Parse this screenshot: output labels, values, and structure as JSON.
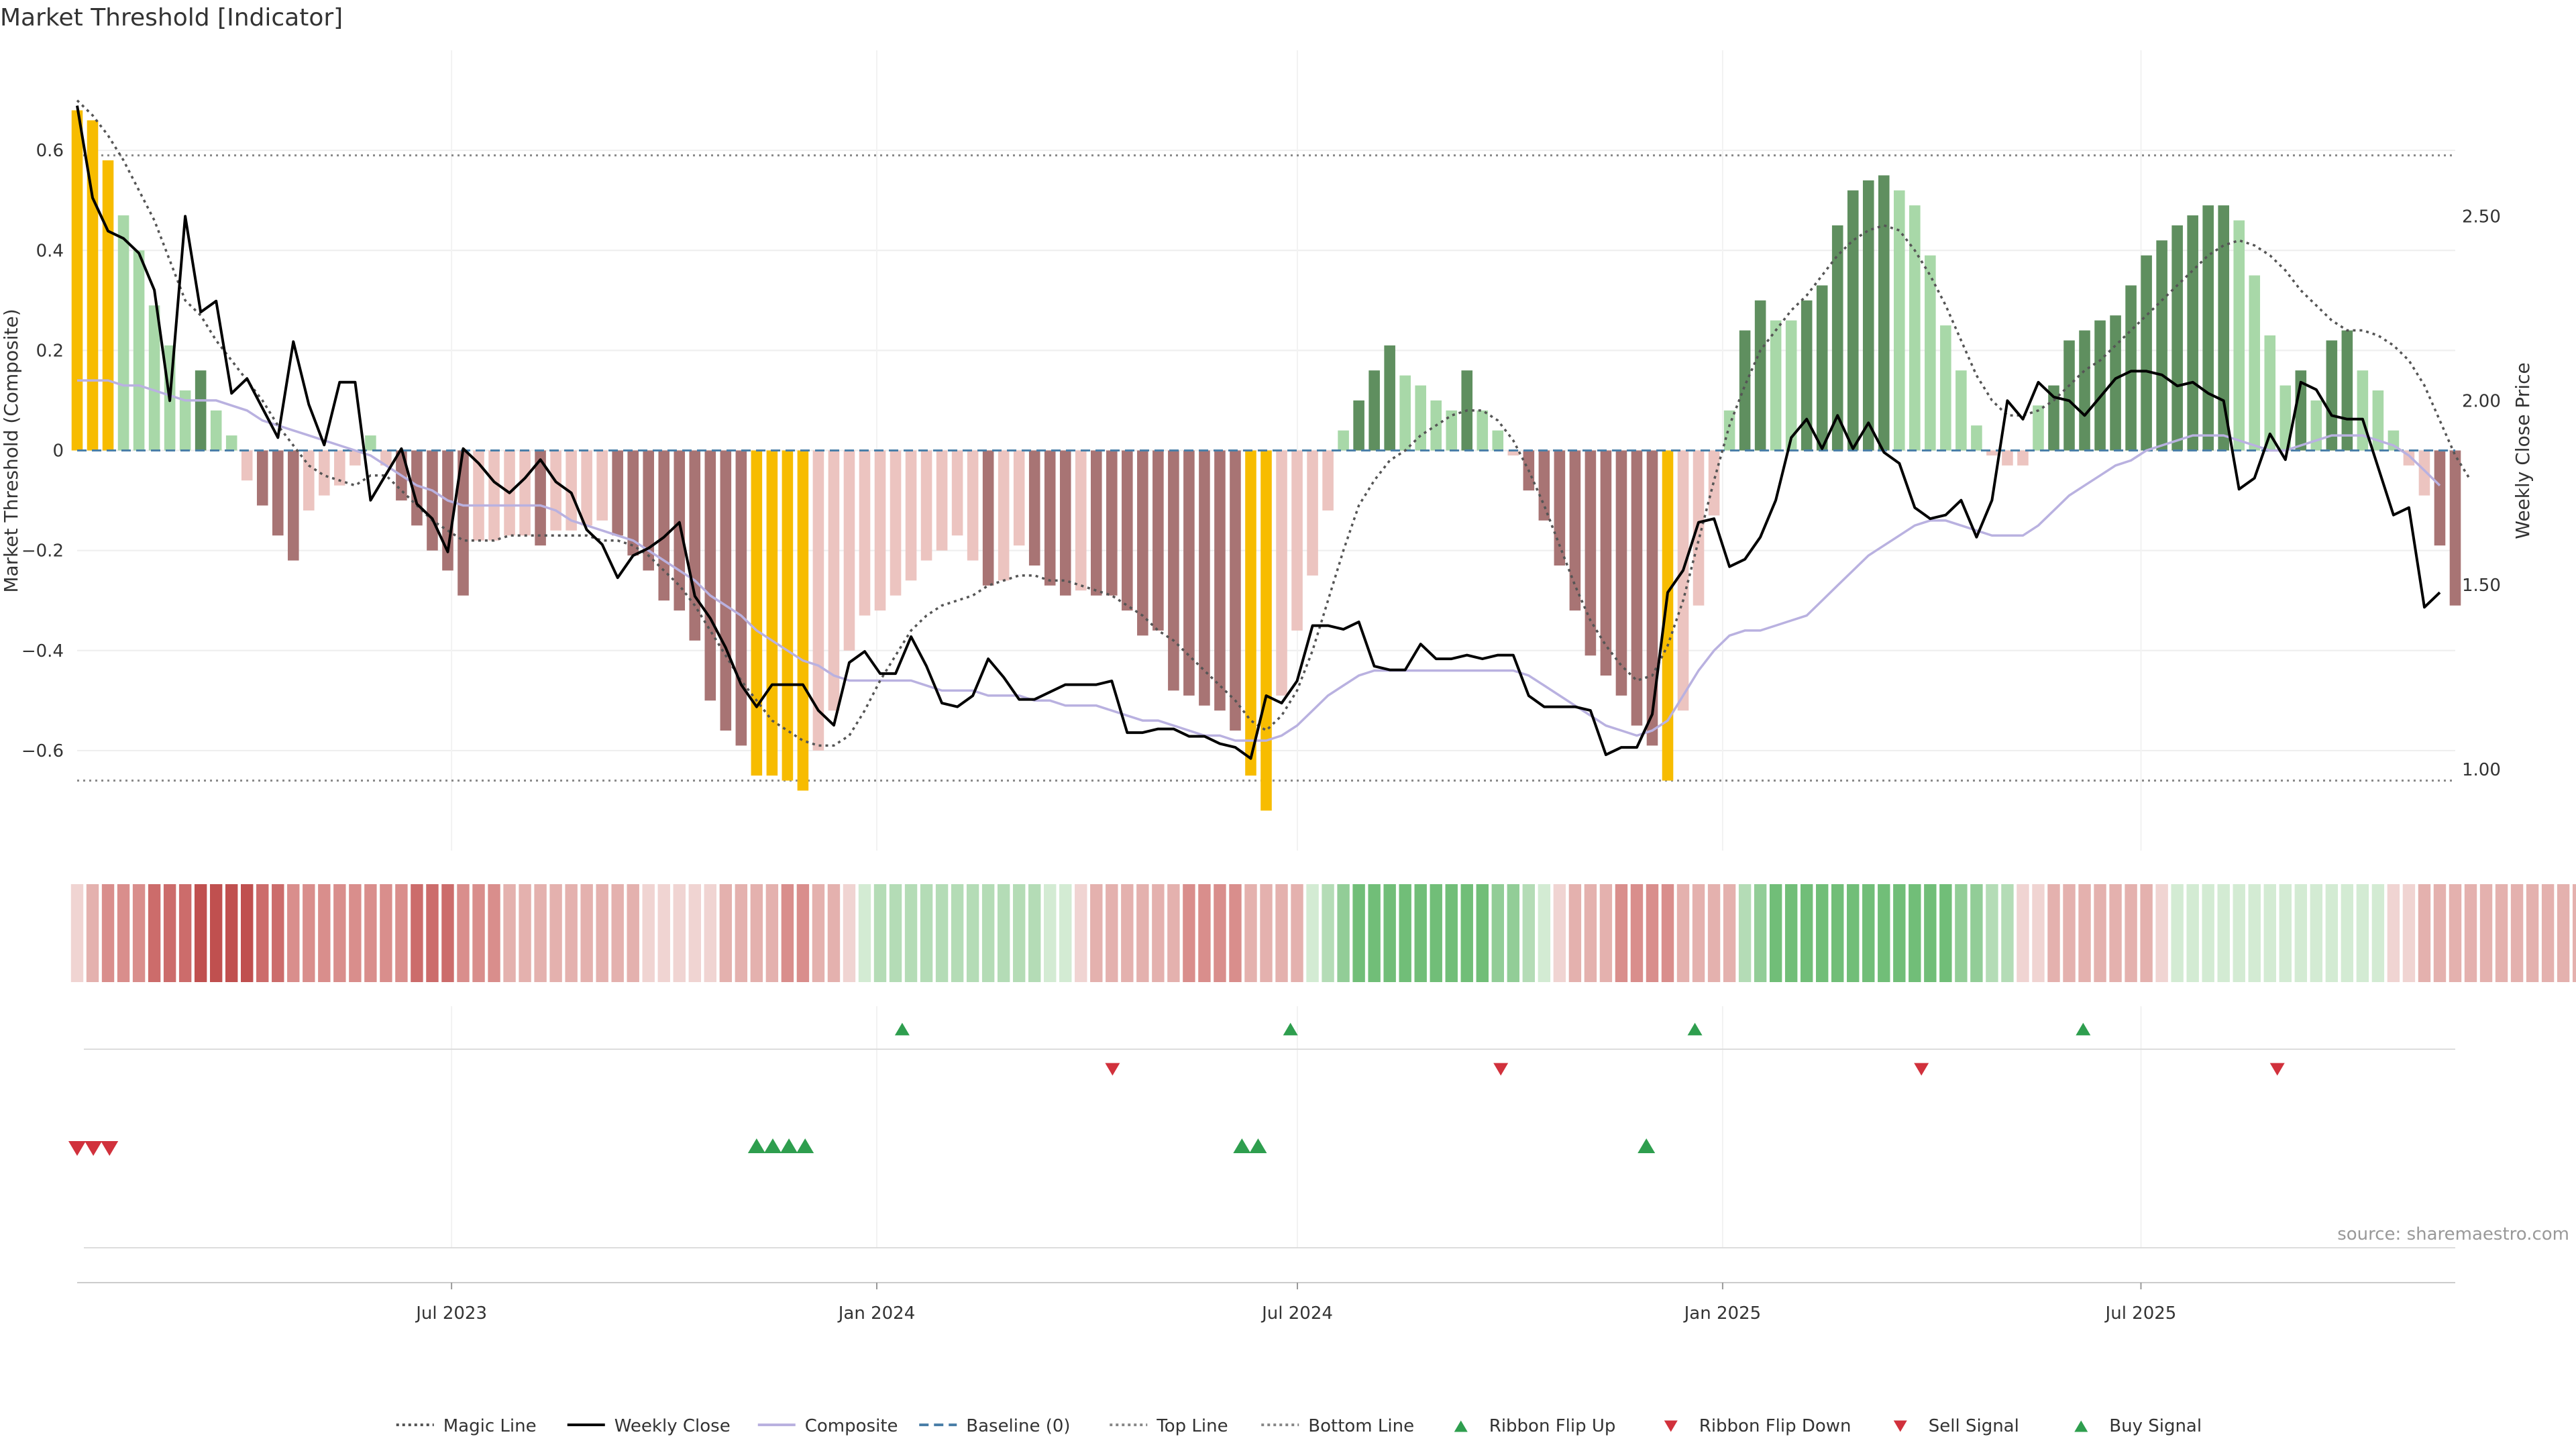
{
  "chart_data": {
    "type": "bar",
    "title": "Market Threshold [Indicator]",
    "ylabel": "Market Threshold (Composite)",
    "y2label": "Weekly Close Price",
    "ylim": [
      -0.8,
      0.8
    ],
    "y2lim": [
      0.78,
      2.95
    ],
    "yticks": [
      -0.6,
      -0.4,
      -0.2,
      0,
      0.2,
      0.4,
      0.6
    ],
    "ytick_labels": [
      "−0.6",
      "−0.4",
      "−0.2",
      "0",
      "0.2",
      "0.4",
      "0.6"
    ],
    "y2ticks": [
      1.0,
      1.5,
      2.0,
      2.5
    ],
    "y2tick_labels": [
      "1.00",
      "1.50",
      "2.00",
      "2.50"
    ],
    "x_start": "2023-01-20",
    "x_end": "2025-11-14",
    "xticks": [
      "2023-07-01",
      "2024-01-01",
      "2024-07-01",
      "2025-01-01",
      "2025-07-01"
    ],
    "xtick_labels": [
      "Jul 2023",
      "Jan 2024",
      "Jul 2024",
      "Jan 2025",
      "Jul 2025"
    ],
    "top_line": 0.59,
    "bottom_line": -0.66,
    "source": "source: sharemaestro.com",
    "legend": [
      {
        "label": "Magic Line",
        "kind": "dotted",
        "color": "#555555"
      },
      {
        "label": "Weekly Close",
        "kind": "solid",
        "color": "#000000"
      },
      {
        "label": "Composite",
        "kind": "solid",
        "color": "#b9b1e0"
      },
      {
        "label": "Baseline (0)",
        "kind": "dashed",
        "color": "#4a7fa8"
      },
      {
        "label": "Top Line",
        "kind": "dotted",
        "color": "#888888"
      },
      {
        "label": "Bottom Line",
        "kind": "dotted",
        "color": "#888888"
      },
      {
        "label": "Ribbon Flip Up",
        "kind": "tri-up",
        "color": "#2e9e4e"
      },
      {
        "label": "Ribbon Flip Down",
        "kind": "tri-down",
        "color": "#d1313c"
      },
      {
        "label": "Sell Signal",
        "kind": "tri-down",
        "color": "#d1313c"
      },
      {
        "label": "Buy Signal",
        "kind": "tri-up",
        "color": "#2e9e4e"
      }
    ],
    "legend_position": "bottom",
    "colors": {
      "strong_positive": "#5f8f5f",
      "weak_positive": "#a8d8a8",
      "strong_negative": "#a87474",
      "weak_negative": "#ecc4c0",
      "extreme": "#f7bc00",
      "weekly_close": "#000000",
      "magic_line": "#555555",
      "composite": "#b9b1e0",
      "baseline": "#4a7fa8",
      "threshold_lines": "#888888",
      "ribbon_green": "#3fb060",
      "ribbon_red": "#c8585a",
      "signal_up": "#2e9e4e",
      "signal_down": "#d1313c"
    },
    "bars": [
      0.68,
      0.66,
      0.58,
      0.47,
      0.4,
      0.29,
      0.21,
      0.12,
      0.16,
      0.08,
      0.03,
      -0.06,
      -0.11,
      -0.17,
      -0.22,
      -0.12,
      -0.09,
      -0.07,
      -0.03,
      0.03,
      -0.03,
      -0.1,
      -0.15,
      -0.2,
      -0.24,
      -0.29,
      -0.18,
      -0.18,
      -0.17,
      -0.17,
      -0.19,
      -0.16,
      -0.16,
      -0.15,
      -0.14,
      -0.17,
      -0.21,
      -0.24,
      -0.3,
      -0.32,
      -0.38,
      -0.5,
      -0.56,
      -0.59,
      -0.65,
      -0.65,
      -0.66,
      -0.68,
      -0.6,
      -0.52,
      -0.4,
      -0.33,
      -0.32,
      -0.29,
      -0.26,
      -0.22,
      -0.2,
      -0.17,
      -0.22,
      -0.27,
      -0.26,
      -0.19,
      -0.23,
      -0.27,
      -0.29,
      -0.28,
      -0.29,
      -0.29,
      -0.32,
      -0.37,
      -0.36,
      -0.48,
      -0.49,
      -0.51,
      -0.52,
      -0.56,
      -0.65,
      -0.72,
      -0.49,
      -0.36,
      -0.25,
      -0.12,
      0.04,
      0.1,
      0.16,
      0.21,
      0.15,
      0.13,
      0.1,
      0.08,
      0.16,
      0.08,
      0.04,
      -0.01,
      -0.08,
      -0.14,
      -0.23,
      -0.32,
      -0.41,
      -0.45,
      -0.49,
      -0.55,
      -0.59,
      -0.66,
      -0.52,
      -0.31,
      -0.13,
      0.08,
      0.24,
      0.3,
      0.26,
      0.26,
      0.3,
      0.33,
      0.45,
      0.52,
      0.54,
      0.55,
      0.52,
      0.49,
      0.39,
      0.25,
      0.16,
      0.05,
      -0.01,
      -0.03,
      -0.03,
      0.09,
      0.13,
      0.22,
      0.24,
      0.26,
      0.27,
      0.33,
      0.39,
      0.42,
      0.45,
      0.47,
      0.49,
      0.49,
      0.46,
      0.35,
      0.23,
      0.13,
      0.16,
      0.1,
      0.22,
      0.24,
      0.16,
      0.12,
      0.04,
      -0.03,
      -0.09,
      -0.19,
      -0.31
    ],
    "bar_classes": [
      "X",
      "X",
      "X",
      "wp",
      "wp",
      "wp",
      "wp",
      "wp",
      "sp",
      "wp",
      "wp",
      "wn",
      "sn",
      "sn",
      "sn",
      "wn",
      "wn",
      "wn",
      "wn",
      "wp",
      "wn",
      "sn",
      "sn",
      "sn",
      "sn",
      "sn",
      "wn",
      "wn",
      "wn",
      "wn",
      "sn",
      "wn",
      "wn",
      "wn",
      "wn",
      "sn",
      "sn",
      "sn",
      "sn",
      "sn",
      "sn",
      "sn",
      "sn",
      "sn",
      "X",
      "X",
      "X",
      "X",
      "wn",
      "wn",
      "wn",
      "wn",
      "wn",
      "wn",
      "wn",
      "wn",
      "wn",
      "wn",
      "wn",
      "sn",
      "wn",
      "wn",
      "sn",
      "sn",
      "sn",
      "wn",
      "sn",
      "sn",
      "sn",
      "sn",
      "sn",
      "sn",
      "sn",
      "sn",
      "sn",
      "sn",
      "X",
      "X",
      "wn",
      "wn",
      "wn",
      "wn",
      "wp",
      "sp",
      "sp",
      "sp",
      "wp",
      "wp",
      "wp",
      "wp",
      "sp",
      "wp",
      "wp",
      "wn",
      "sn",
      "sn",
      "sn",
      "sn",
      "sn",
      "sn",
      "sn",
      "sn",
      "sn",
      "X",
      "wn",
      "wn",
      "wn",
      "wp",
      "sp",
      "sp",
      "wp",
      "wp",
      "sp",
      "sp",
      "sp",
      "sp",
      "sp",
      "sp",
      "wp",
      "wp",
      "wp",
      "wp",
      "wp",
      "wp",
      "wn",
      "wn",
      "wn",
      "wp",
      "sp",
      "sp",
      "sp",
      "sp",
      "sp",
      "sp",
      "sp",
      "sp",
      "sp",
      "sp",
      "sp",
      "sp",
      "wp",
      "wp",
      "wp",
      "wp",
      "sp",
      "wp",
      "sp",
      "sp",
      "wp",
      "wp",
      "wp",
      "wn",
      "wn",
      "sn",
      "sn"
    ],
    "weekly_close": [
      2.8,
      2.55,
      2.46,
      2.44,
      2.4,
      2.3,
      2.0,
      2.5,
      2.24,
      2.27,
      2.02,
      2.06,
      1.98,
      1.9,
      2.16,
      1.99,
      1.88,
      2.05,
      2.05,
      1.73,
      1.8,
      1.87,
      1.72,
      1.68,
      1.59,
      1.87,
      1.83,
      1.78,
      1.75,
      1.79,
      1.84,
      1.78,
      1.75,
      1.65,
      1.61,
      1.52,
      1.58,
      1.6,
      1.63,
      1.67,
      1.47,
      1.41,
      1.33,
      1.23,
      1.17,
      1.23,
      1.23,
      1.23,
      1.16,
      1.12,
      1.29,
      1.32,
      1.26,
      1.26,
      1.36,
      1.28,
      1.18,
      1.17,
      1.2,
      1.3,
      1.25,
      1.19,
      1.19,
      1.21,
      1.23,
      1.23,
      1.23,
      1.24,
      1.1,
      1.1,
      1.11,
      1.11,
      1.09,
      1.09,
      1.07,
      1.06,
      1.03,
      1.2,
      1.18,
      1.24,
      1.39,
      1.39,
      1.38,
      1.4,
      1.28,
      1.27,
      1.27,
      1.34,
      1.3,
      1.3,
      1.31,
      1.3,
      1.31,
      1.31,
      1.2,
      1.17,
      1.17,
      1.17,
      1.16,
      1.04,
      1.06,
      1.06,
      1.15,
      1.48,
      1.54,
      1.67,
      1.68,
      1.55,
      1.57,
      1.63,
      1.73,
      1.9,
      1.95,
      1.87,
      1.96,
      1.87,
      1.94,
      1.86,
      1.83,
      1.71,
      1.68,
      1.69,
      1.73,
      1.63,
      1.73,
      2.0,
      1.95,
      2.05,
      2.01,
      2.0,
      1.96,
      2.01,
      2.06,
      2.08,
      2.08,
      2.07,
      2.04,
      2.05,
      2.02,
      2.0,
      1.76,
      1.79,
      1.91,
      1.84,
      2.05,
      2.03,
      1.96,
      1.95,
      1.95,
      1.82,
      1.69,
      1.71,
      1.44,
      1.48
    ],
    "magic_line": [
      0.7,
      0.67,
      0.63,
      0.58,
      0.52,
      0.46,
      0.38,
      0.3,
      0.27,
      0.22,
      0.18,
      0.14,
      0.1,
      0.05,
      0.01,
      -0.03,
      -0.05,
      -0.06,
      -0.07,
      -0.05,
      -0.05,
      -0.08,
      -0.11,
      -0.14,
      -0.16,
      -0.18,
      -0.18,
      -0.18,
      -0.17,
      -0.17,
      -0.17,
      -0.17,
      -0.17,
      -0.17,
      -0.18,
      -0.18,
      -0.19,
      -0.21,
      -0.24,
      -0.27,
      -0.31,
      -0.36,
      -0.41,
      -0.46,
      -0.5,
      -0.54,
      -0.56,
      -0.58,
      -0.59,
      -0.59,
      -0.57,
      -0.52,
      -0.46,
      -0.41,
      -0.36,
      -0.33,
      -0.31,
      -0.3,
      -0.29,
      -0.27,
      -0.26,
      -0.25,
      -0.25,
      -0.26,
      -0.26,
      -0.27,
      -0.28,
      -0.29,
      -0.31,
      -0.33,
      -0.36,
      -0.38,
      -0.41,
      -0.44,
      -0.47,
      -0.5,
      -0.54,
      -0.56,
      -0.53,
      -0.48,
      -0.4,
      -0.3,
      -0.2,
      -0.11,
      -0.06,
      -0.02,
      0.0,
      0.03,
      0.05,
      0.07,
      0.08,
      0.08,
      0.06,
      0.02,
      -0.04,
      -0.11,
      -0.19,
      -0.27,
      -0.34,
      -0.39,
      -0.43,
      -0.46,
      -0.45,
      -0.39,
      -0.3,
      -0.18,
      -0.06,
      0.05,
      0.13,
      0.2,
      0.24,
      0.28,
      0.31,
      0.35,
      0.39,
      0.42,
      0.44,
      0.45,
      0.44,
      0.4,
      0.35,
      0.29,
      0.22,
      0.15,
      0.1,
      0.07,
      0.07,
      0.08,
      0.1,
      0.13,
      0.16,
      0.18,
      0.21,
      0.24,
      0.27,
      0.3,
      0.33,
      0.36,
      0.39,
      0.41,
      0.42,
      0.41,
      0.39,
      0.36,
      0.32,
      0.29,
      0.26,
      0.24,
      0.24,
      0.23,
      0.21,
      0.18,
      0.13,
      0.06,
      -0.01,
      -0.06
    ],
    "composite": [
      0.14,
      0.14,
      0.14,
      0.13,
      0.13,
      0.12,
      0.11,
      0.1,
      0.1,
      0.1,
      0.09,
      0.08,
      0.06,
      0.05,
      0.04,
      0.03,
      0.02,
      0.01,
      0.0,
      -0.01,
      -0.03,
      -0.05,
      -0.07,
      -0.08,
      -0.1,
      -0.11,
      -0.11,
      -0.11,
      -0.11,
      -0.11,
      -0.11,
      -0.12,
      -0.14,
      -0.15,
      -0.16,
      -0.17,
      -0.18,
      -0.2,
      -0.22,
      -0.24,
      -0.26,
      -0.29,
      -0.31,
      -0.33,
      -0.36,
      -0.38,
      -0.4,
      -0.42,
      -0.43,
      -0.45,
      -0.46,
      -0.46,
      -0.46,
      -0.46,
      -0.46,
      -0.47,
      -0.48,
      -0.48,
      -0.48,
      -0.49,
      -0.49,
      -0.49,
      -0.5,
      -0.5,
      -0.51,
      -0.51,
      -0.51,
      -0.52,
      -0.53,
      -0.54,
      -0.54,
      -0.55,
      -0.56,
      -0.57,
      -0.57,
      -0.58,
      -0.58,
      -0.58,
      -0.57,
      -0.55,
      -0.52,
      -0.49,
      -0.47,
      -0.45,
      -0.44,
      -0.44,
      -0.44,
      -0.44,
      -0.44,
      -0.44,
      -0.44,
      -0.44,
      -0.44,
      -0.44,
      -0.45,
      -0.47,
      -0.49,
      -0.51,
      -0.53,
      -0.55,
      -0.56,
      -0.57,
      -0.56,
      -0.54,
      -0.49,
      -0.44,
      -0.4,
      -0.37,
      -0.36,
      -0.36,
      -0.35,
      -0.34,
      -0.33,
      -0.3,
      -0.27,
      -0.24,
      -0.21,
      -0.19,
      -0.17,
      -0.15,
      -0.14,
      -0.14,
      -0.15,
      -0.16,
      -0.17,
      -0.17,
      -0.17,
      -0.15,
      -0.12,
      -0.09,
      -0.07,
      -0.05,
      -0.03,
      -0.02,
      -0.0,
      0.01,
      0.02,
      0.03,
      0.03,
      0.03,
      0.02,
      0.01,
      0.0,
      -0.0,
      0.01,
      0.02,
      0.03,
      0.03,
      0.03,
      0.02,
      0.01,
      -0.01,
      -0.04,
      -0.07
    ],
    "ribbon": [
      -1,
      -2,
      -3,
      -3,
      -3,
      -4,
      -4,
      -4,
      -5,
      -5,
      -5,
      -5,
      -4,
      -4,
      -3,
      -3,
      -3,
      -3,
      -3,
      -3,
      -3,
      -3,
      -4,
      -4,
      -4,
      -3,
      -3,
      -3,
      -2,
      -2,
      -2,
      -2,
      -2,
      -2,
      -2,
      -2,
      -2,
      -1,
      -1,
      -1,
      -1,
      -1,
      -2,
      -2,
      -2,
      -2,
      -3,
      -3,
      -2,
      -2,
      -1,
      1,
      2,
      2,
      2,
      2,
      2,
      2,
      2,
      2,
      2,
      2,
      2,
      1,
      1,
      -1,
      -2,
      -2,
      -2,
      -2,
      -2,
      -2,
      -3,
      -3,
      -3,
      -3,
      -2,
      -2,
      -2,
      -2,
      1,
      2,
      3,
      4,
      4,
      4,
      4,
      4,
      4,
      4,
      4,
      4,
      3,
      3,
      2,
      1,
      -1,
      -2,
      -2,
      -2,
      -3,
      -3,
      -3,
      -3,
      -2,
      -2,
      -2,
      -2,
      2,
      3,
      4,
      4,
      4,
      4,
      4,
      4,
      4,
      4,
      4,
      4,
      4,
      4,
      3,
      3,
      2,
      2,
      -1,
      -1,
      -2,
      -2,
      -2,
      -2,
      -2,
      -2,
      -2,
      -1,
      1,
      1,
      1,
      1,
      1,
      1,
      1,
      1,
      1,
      1,
      1,
      1,
      1,
      1,
      -1,
      -1,
      -2,
      -2,
      -2,
      -2,
      -2,
      -2,
      -2,
      -2,
      -2,
      -2,
      -2,
      -2
    ],
    "ribbon_flips_up": [
      "2024-01-12",
      "2024-06-28",
      "2024-12-20",
      "2025-06-06"
    ],
    "ribbon_flips_down": [
      "2024-04-12",
      "2024-09-27",
      "2025-03-28",
      "2025-08-29"
    ],
    "sell_signals": [
      "2023-01-20",
      "2023-01-27",
      "2023-02-03"
    ],
    "buy_signals": [
      "2023-11-10",
      "2023-11-17",
      "2023-11-24",
      "2023-12-01",
      "2024-06-07",
      "2024-06-14",
      "2024-11-29"
    ]
  }
}
